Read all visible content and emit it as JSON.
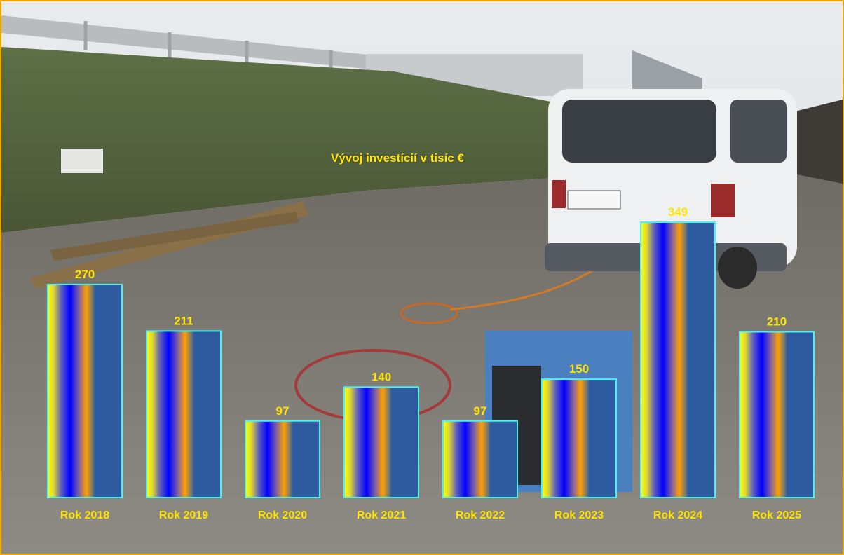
{
  "chart_data": {
    "type": "bar",
    "title": "Vývoj investícií v tisíc €",
    "categories": [
      "Rok 2018",
      "Rok 2019",
      "Rok 2020",
      "Rok 2021",
      "Rok 2022",
      "Rok 2023",
      "Rok 2024",
      "Rok 2025"
    ],
    "values": [
      270,
      211,
      97,
      140,
      97,
      150,
      349,
      210
    ],
    "data_labels": [
      "270",
      "211",
      "97",
      "140",
      "97",
      "150",
      "349",
      "210"
    ],
    "ylim": [
      0,
      349
    ],
    "grid": false,
    "legend": "none",
    "colors": {
      "bar_fill": "#2e5aa0",
      "bar_outline": "#4ff0f0",
      "label_text": "#ffe400",
      "frame": "#f0a800",
      "gradient": [
        "#ffff00",
        "#0000ff",
        "#ffa000",
        "#2e5aa0"
      ]
    }
  },
  "background": {
    "description": "photo-background-construction-site-van-generator"
  }
}
